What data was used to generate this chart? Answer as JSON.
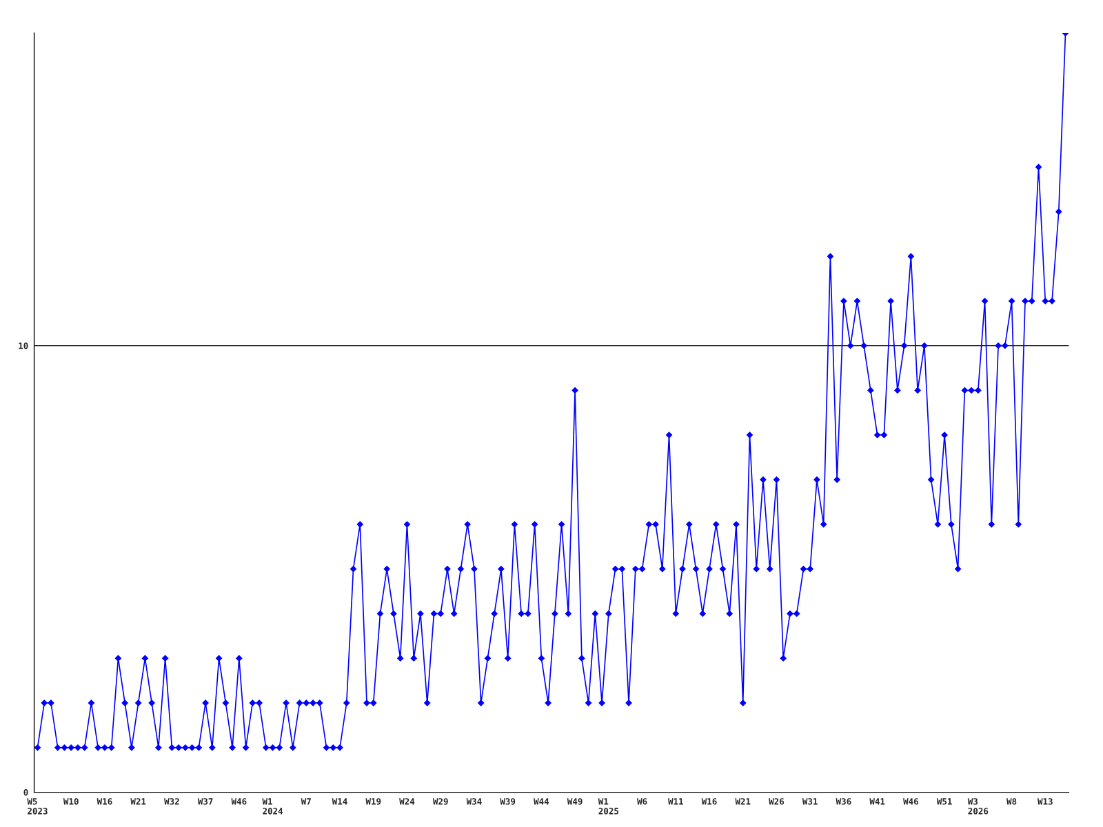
{
  "chart_data": {
    "type": "line",
    "categories": [
      "W5\n2023",
      null,
      null,
      null,
      null,
      "W10",
      null,
      null,
      null,
      null,
      "W16",
      null,
      null,
      null,
      null,
      "W21",
      null,
      null,
      null,
      null,
      "W32",
      null,
      null,
      null,
      null,
      "W37",
      null,
      null,
      null,
      null,
      "W46",
      null,
      null,
      null,
      null,
      "W1\n2024",
      null,
      null,
      null,
      null,
      "W7",
      null,
      null,
      null,
      null,
      "W14",
      null,
      null,
      null,
      null,
      "W19",
      null,
      null,
      null,
      null,
      "W24",
      null,
      null,
      null,
      null,
      "W29",
      null,
      null,
      null,
      null,
      "W34",
      null,
      null,
      null,
      null,
      "W39",
      null,
      null,
      null,
      null,
      "W44",
      null,
      null,
      null,
      null,
      "W49",
      null,
      null,
      null,
      null,
      "W1\n2025",
      null,
      null,
      null,
      null,
      "W6",
      null,
      null,
      null,
      null,
      "W11",
      null,
      null,
      null,
      null,
      "W16",
      null,
      null,
      null,
      null,
      "W21",
      null,
      null,
      null,
      null,
      "W26",
      null,
      null,
      null,
      null,
      "W31",
      null,
      null,
      null,
      null,
      "W36",
      null,
      null,
      null,
      null,
      "W41",
      null,
      null,
      null,
      null,
      "W46",
      null,
      null,
      null,
      null,
      "W51",
      null,
      null,
      null,
      null,
      "W3\n2026",
      null,
      null,
      null,
      null,
      "W8",
      null,
      null,
      null,
      null,
      "W13",
      null,
      null,
      null
    ],
    "series": [
      {
        "color": "#0000ff",
        "values": [
          1,
          2,
          2,
          1,
          1,
          1,
          1,
          1,
          2,
          1,
          1,
          1,
          3,
          2,
          1,
          2,
          3,
          2,
          1,
          3,
          1,
          1,
          1,
          1,
          1,
          2,
          1,
          3,
          2,
          1,
          3,
          1,
          2,
          2,
          1,
          1,
          1,
          2,
          1,
          2,
          2,
          2,
          2,
          1,
          1,
          1,
          2,
          5,
          6,
          2,
          2,
          4,
          5,
          4,
          3,
          6,
          3,
          4,
          2,
          4,
          4,
          5,
          4,
          5,
          6,
          5,
          2,
          3,
          4,
          5,
          3,
          6,
          4,
          4,
          6,
          3,
          2,
          4,
          6,
          4,
          9,
          3,
          2,
          4,
          2,
          4,
          5,
          5,
          2,
          5,
          5,
          6,
          6,
          5,
          8,
          4,
          5,
          6,
          5,
          4,
          5,
          6,
          5,
          4,
          6,
          2,
          8,
          5,
          7,
          5,
          7,
          3,
          4,
          4,
          5,
          5,
          7,
          6,
          12,
          7,
          11,
          10,
          11,
          10,
          9,
          8,
          8,
          11,
          9,
          10,
          12,
          9,
          10,
          7,
          6,
          8,
          6,
          5,
          9,
          9,
          9,
          11,
          6,
          10,
          10,
          11,
          6,
          11,
          11,
          14,
          11,
          11,
          13,
          17
        ]
      }
    ],
    "ylim": [
      0,
      17
    ],
    "yticks": [
      0,
      10
    ],
    "grid": "y",
    "marker": "diamond",
    "line_style": "solid"
  }
}
